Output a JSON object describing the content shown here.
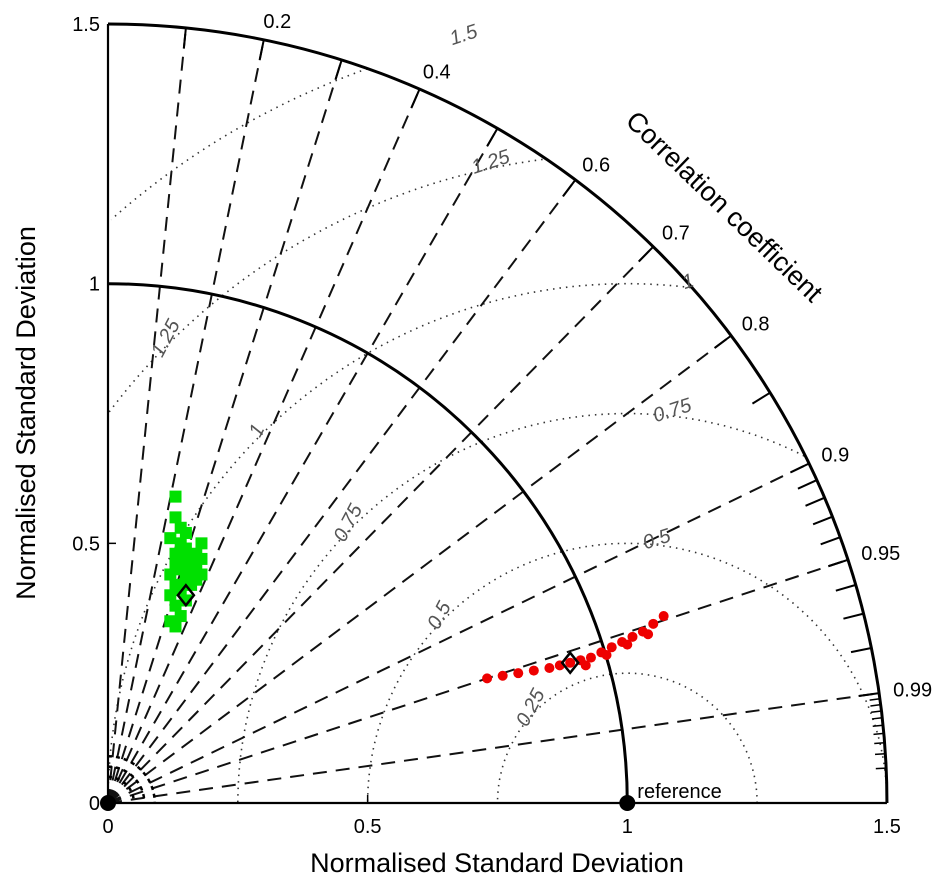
{
  "chart_data": {
    "type": "scatter",
    "title": "",
    "xlabel": "Normalised Standard Deviation",
    "ylabel": "Normalised Standard Deviation",
    "xlim": [
      0,
      1.5
    ],
    "ylim": [
      0,
      1.5
    ],
    "x_ticks": [
      "0",
      "0.5",
      "1",
      "1.5"
    ],
    "y_ticks": [
      "0",
      "0.5",
      "1",
      "1.5"
    ],
    "correlation_label": "Correlation coefficient",
    "correlation_ticks": [
      {
        "value": 0.2,
        "label": "0.2"
      },
      {
        "value": 0.4,
        "label": "0.4"
      },
      {
        "value": 0.6,
        "label": "0.6"
      },
      {
        "value": 0.7,
        "label": "0.7"
      },
      {
        "value": 0.8,
        "label": "0.8"
      },
      {
        "value": 0.9,
        "label": "0.9"
      },
      {
        "value": 0.95,
        "label": "0.95"
      },
      {
        "value": 0.99,
        "label": "0.99"
      }
    ],
    "minor_correlation_ticks": [
      0.1,
      0.3,
      0.5,
      0.85,
      0.91,
      0.92,
      0.93,
      0.94,
      0.96,
      0.97,
      0.98
    ],
    "std_arcs": [
      1.0,
      1.5
    ],
    "rms_contours": [
      0.25,
      0.5,
      0.75,
      1,
      1.25,
      1.5
    ],
    "rms_labels": [
      {
        "label": "0.25",
        "rms": 0.25,
        "side": "low"
      },
      {
        "label": "0.5",
        "rms": 0.5,
        "side": "low"
      },
      {
        "label": "0.75",
        "rms": 0.75,
        "side": "low"
      },
      {
        "label": "1",
        "rms": 1.0,
        "side": "low"
      },
      {
        "label": "1.25",
        "rms": 1.25,
        "side": "low"
      },
      {
        "label": "0.5",
        "rms": 0.5,
        "side": "high"
      },
      {
        "label": "0.75",
        "rms": 0.75,
        "side": "high"
      },
      {
        "label": "1",
        "rms": 1.0,
        "side": "high"
      },
      {
        "label": "1.25",
        "rms": 1.25,
        "side": "high"
      },
      {
        "label": "1.5",
        "rms": 1.5,
        "side": "high"
      }
    ],
    "reference": {
      "x": 1.0,
      "y": 0.0,
      "label": "reference"
    },
    "series": [
      {
        "color": "#00e000",
        "marker": "square",
        "points": [
          [
            0.13,
            0.59
          ],
          [
            0.13,
            0.55
          ],
          [
            0.14,
            0.53
          ],
          [
            0.12,
            0.51
          ],
          [
            0.14,
            0.5
          ],
          [
            0.15,
            0.49
          ],
          [
            0.13,
            0.48
          ],
          [
            0.17,
            0.48
          ],
          [
            0.18,
            0.5
          ],
          [
            0.16,
            0.47
          ],
          [
            0.13,
            0.46
          ],
          [
            0.17,
            0.46
          ],
          [
            0.14,
            0.45
          ],
          [
            0.18,
            0.44
          ],
          [
            0.15,
            0.43
          ],
          [
            0.13,
            0.42
          ],
          [
            0.16,
            0.42
          ],
          [
            0.14,
            0.41
          ],
          [
            0.12,
            0.4
          ],
          [
            0.15,
            0.39
          ],
          [
            0.13,
            0.38
          ],
          [
            0.14,
            0.36
          ],
          [
            0.12,
            0.35
          ],
          [
            0.13,
            0.34
          ],
          [
            0.16,
            0.45
          ],
          [
            0.15,
            0.52
          ],
          [
            0.18,
            0.47
          ],
          [
            0.12,
            0.44
          ],
          [
            0.14,
            0.47
          ],
          [
            0.17,
            0.43
          ]
        ],
        "mean": [
          0.15,
          0.4
        ]
      },
      {
        "color": "#ee0000",
        "marker": "circle",
        "points": [
          [
            0.73,
            0.24
          ],
          [
            0.76,
            0.245
          ],
          [
            0.79,
            0.25
          ],
          [
            0.82,
            0.255
          ],
          [
            0.85,
            0.26
          ],
          [
            0.87,
            0.265
          ],
          [
            0.89,
            0.27
          ],
          [
            0.91,
            0.275
          ],
          [
            0.93,
            0.28
          ],
          [
            0.95,
            0.29
          ],
          [
            0.97,
            0.3
          ],
          [
            0.99,
            0.31
          ],
          [
            1.01,
            0.32
          ],
          [
            1.03,
            0.33
          ],
          [
            1.05,
            0.345
          ],
          [
            1.07,
            0.36
          ],
          [
            0.92,
            0.265
          ],
          [
            0.96,
            0.285
          ],
          [
            1.0,
            0.305
          ],
          [
            1.04,
            0.325
          ]
        ],
        "mean": [
          0.89,
          0.27
        ]
      }
    ]
  }
}
